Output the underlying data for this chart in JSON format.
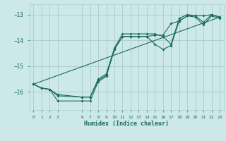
{
  "xlabel": "Humidex (Indice chaleur)",
  "bg_color": "#cce8e8",
  "grid_color": "#aacccc",
  "line_color": "#1a6b5a",
  "xlim": [
    -0.5,
    23.5
  ],
  "ylim": [
    -16.7,
    -12.6
  ],
  "yticks": [
    -16,
    -15,
    -14,
    -13
  ],
  "xticks": [
    0,
    1,
    2,
    3,
    6,
    7,
    8,
    9,
    10,
    11,
    12,
    13,
    14,
    15,
    16,
    17,
    18,
    19,
    20,
    21,
    22,
    23
  ],
  "series1_x": [
    0,
    1,
    2,
    3,
    6,
    7,
    8,
    9,
    10,
    11,
    12,
    13,
    14,
    15,
    16,
    17,
    18,
    19,
    20,
    21,
    22,
    23
  ],
  "series1_y": [
    -15.7,
    -15.85,
    -15.9,
    -16.15,
    -16.2,
    -16.2,
    -15.55,
    -15.35,
    -14.35,
    -13.85,
    -13.85,
    -13.85,
    -13.85,
    -14.15,
    -14.35,
    -14.2,
    -13.25,
    -13.05,
    -13.1,
    -13.4,
    -13.05,
    -13.15
  ],
  "series2_x": [
    0,
    1,
    2,
    3,
    6,
    7,
    8,
    9,
    10,
    11,
    12,
    13,
    14,
    15,
    16,
    17,
    18,
    19,
    20,
    21,
    22,
    23
  ],
  "series2_y": [
    -15.7,
    -15.85,
    -15.9,
    -16.1,
    -16.2,
    -16.2,
    -15.5,
    -15.3,
    -14.3,
    -13.75,
    -13.75,
    -13.75,
    -13.75,
    -13.75,
    -13.85,
    -14.15,
    -13.15,
    -13.0,
    -13.05,
    -13.3,
    -13.0,
    -13.1
  ],
  "series3_x": [
    0,
    23
  ],
  "series3_y": [
    -15.7,
    -13.1
  ],
  "series4_x": [
    0,
    1,
    2,
    3,
    6,
    7,
    8,
    9,
    10,
    11,
    12,
    13,
    14,
    15,
    16,
    17,
    18,
    19,
    20,
    21,
    22,
    23
  ],
  "series4_y": [
    -15.7,
    -15.85,
    -15.9,
    -16.35,
    -16.35,
    -16.35,
    -15.6,
    -15.4,
    -14.35,
    -13.85,
    -13.85,
    -13.85,
    -13.85,
    -13.8,
    -13.8,
    -13.35,
    -13.25,
    -13.05,
    -13.05,
    -13.05,
    -13.0,
    -13.1
  ]
}
